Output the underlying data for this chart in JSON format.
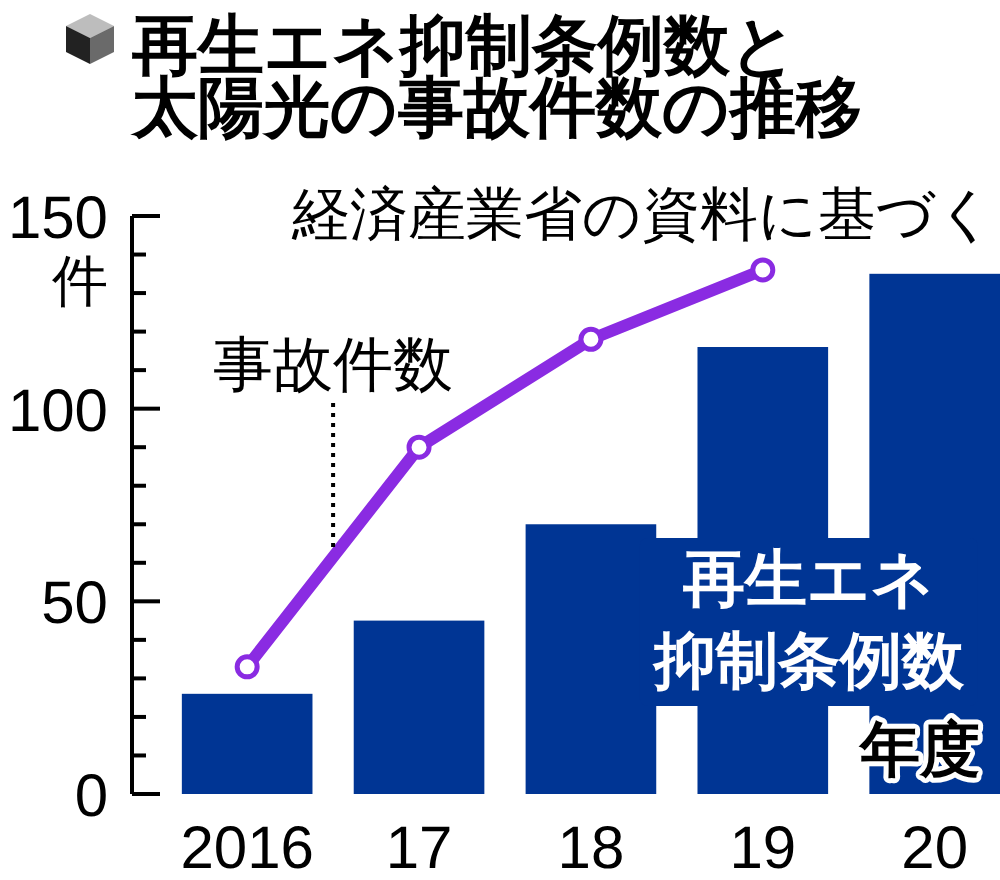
{
  "chart_data": {
    "type": "bar",
    "title": "再生エネ抑制条例数と太陽光の事故件数の推移",
    "ylabel": "件",
    "xlabel": "年度",
    "annotations": [
      "経済産業省の資料に基づく"
    ],
    "categories": [
      "2016",
      "17",
      "18",
      "19",
      "20"
    ],
    "ylim": [
      0,
      150
    ],
    "yticks": [
      0,
      {
        "value": 10,
        "label": null
      },
      {
        "value": 20,
        "label": null
      },
      {
        "value": 30,
        "label": null
      },
      {
        "value": 40,
        "label": null
      },
      50,
      {
        "value": 60,
        "label": null
      },
      {
        "value": 70,
        "label": null
      },
      {
        "value": 80,
        "label": null
      },
      {
        "value": 90,
        "label": null
      },
      100,
      {
        "value": 110,
        "label": null
      },
      {
        "value": 120,
        "label": null
      },
      {
        "value": 130,
        "label": null
      },
      {
        "value": 140,
        "label": null
      },
      150
    ],
    "marker": "circle",
    "series": [
      {
        "name": "再生エネ抑制条例数",
        "color": "#003594",
        "values": [
          26,
          45,
          70,
          116,
          135
        ]
      },
      {
        "name": "事故件数",
        "type": "line",
        "color": "#8a2be2",
        "values": [
          33,
          90,
          118,
          136,
          null
        ]
      }
    ]
  }
}
